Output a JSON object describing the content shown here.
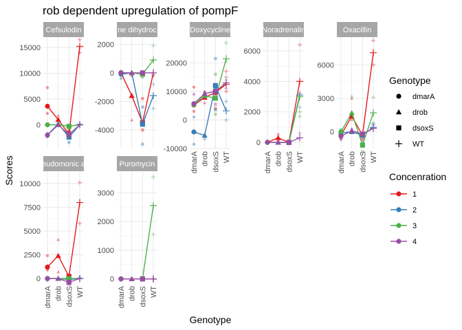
{
  "chart_data": {
    "type": "line",
    "title": "rob dependent upregulation of pompF",
    "xlabel": "Genotype",
    "ylabel": "Scores",
    "categories": [
      "dmarA",
      "drob",
      "dsoxS",
      "WT"
    ],
    "grid": true,
    "legend_position": "right",
    "legends": {
      "shape": {
        "title": "Genotype",
        "entries": [
          {
            "label": "dmarA",
            "shape": "circle"
          },
          {
            "label": "drob",
            "shape": "triangle"
          },
          {
            "label": "dsoxS",
            "shape": "square"
          },
          {
            "label": "WT",
            "shape": "plus"
          }
        ]
      },
      "color": {
        "title": "Concenration",
        "entries": [
          {
            "label": "1",
            "color": "#e41a1c"
          },
          {
            "label": "2",
            "color": "#377eb8"
          },
          {
            "label": "3",
            "color": "#4daf4a"
          },
          {
            "label": "4",
            "color": "#984ea3"
          }
        ]
      }
    },
    "panels": [
      {
        "strip": "Cefsulodin",
        "ylim": [
          -4600,
          17000
        ],
        "yticks": [
          0,
          5000,
          10000,
          15000
        ],
        "ytick_labels": [
          "0",
          "5000",
          "10000",
          "15000"
        ],
        "series": [
          {
            "name": "1",
            "values": [
              3600,
              1000,
              -1800,
              15200
            ],
            "points": [
              [
                0,
                7200
              ],
              [
                0,
                2200
              ],
              [
                1,
                1800
              ],
              [
                1,
                200
              ],
              [
                2,
                -1200
              ],
              [
                2,
                -2400
              ],
              [
                3,
                16500
              ],
              [
                3,
                14000
              ]
            ]
          },
          {
            "name": "2",
            "values": [
              -2000,
              200,
              -2400,
              0
            ],
            "points": [
              [
                0,
                -2300
              ],
              [
                0,
                -1700
              ],
              [
                1,
                300
              ],
              [
                2,
                -3400
              ],
              [
                2,
                -1400
              ],
              [
                3,
                200
              ]
            ]
          },
          {
            "name": "3",
            "values": [
              0,
              0,
              -300,
              0
            ],
            "points": [
              [
                0,
                100
              ],
              [
                1,
                -100
              ],
              [
                2,
                -800
              ],
              [
                2,
                -200
              ],
              [
                3,
                100
              ]
            ]
          },
          {
            "name": "4",
            "values": [
              -2000,
              0,
              -1900,
              0
            ],
            "points": [
              [
                0,
                -2300
              ],
              [
                0,
                -1800
              ],
              [
                1,
                100
              ],
              [
                2,
                -2200
              ],
              [
                2,
                -1600
              ],
              [
                3,
                -100
              ]
            ]
          }
        ]
      },
      {
        "strip": "ne dihydroc",
        "ylim": [
          -5300,
          2500
        ],
        "yticks": [
          -4000,
          -2000,
          0,
          2000
        ],
        "ytick_labels": [
          "-4000",
          "-2000",
          "0",
          "2000"
        ],
        "series": [
          {
            "name": "1",
            "values": [
              0,
              -1600,
              -3500,
              0
            ],
            "points": [
              [
                0,
                100
              ],
              [
                1,
                -3300
              ],
              [
                1,
                -200
              ],
              [
                2,
                -4000
              ],
              [
                2,
                -1800
              ],
              [
                3,
                -200
              ]
            ]
          },
          {
            "name": "2",
            "values": [
              -100,
              0,
              -3600,
              -1600
            ],
            "points": [
              [
                0,
                -400
              ],
              [
                1,
                100
              ],
              [
                2,
                -5000
              ],
              [
                2,
                -2400
              ],
              [
                3,
                -2500
              ],
              [
                3,
                -800
              ]
            ]
          },
          {
            "name": "3",
            "values": [
              0,
              0,
              -100,
              900
            ],
            "points": [
              [
                0,
                100
              ],
              [
                1,
                -100
              ],
              [
                2,
                -300
              ],
              [
                3,
                1900
              ],
              [
                3,
                -100
              ]
            ]
          },
          {
            "name": "4",
            "values": [
              0,
              0,
              0,
              0
            ],
            "points": [
              [
                0,
                -100
              ],
              [
                1,
                100
              ],
              [
                2,
                -100
              ],
              [
                3,
                0
              ]
            ]
          }
        ]
      },
      {
        "strip": "Doxycycline",
        "ylim": [
          -10000,
          29000
        ],
        "yticks": [
          -10000,
          0,
          10000,
          20000
        ],
        "ytick_labels": [
          "-10000",
          "0",
          "10000",
          "20000"
        ],
        "series": [
          {
            "name": "1",
            "values": [
              5200,
              7900,
              9600,
              12500
            ],
            "points": [
              [
                0,
                11500
              ],
              [
                0,
                3000
              ],
              [
                1,
                10000
              ],
              [
                1,
                6000
              ],
              [
                2,
                11000
              ],
              [
                2,
                4000
              ],
              [
                3,
                17000
              ],
              [
                3,
                10000
              ]
            ]
          },
          {
            "name": "2",
            "values": [
              -4200,
              -5400,
              12000,
              3200
            ],
            "points": [
              [
                0,
                -8500
              ],
              [
                0,
                1000
              ],
              [
                1,
                -6500
              ],
              [
                2,
                21500
              ],
              [
                2,
                3500
              ],
              [
                3,
                0
              ],
              [
                3,
                6500
              ]
            ]
          },
          {
            "name": "3",
            "values": [
              5300,
              8500,
              7600,
              21400
            ],
            "points": [
              [
                0,
                6000
              ],
              [
                1,
                9500
              ],
              [
                2,
                16000
              ],
              [
                2,
                2000
              ],
              [
                3,
                27000
              ],
              [
                3,
                14000
              ]
            ]
          },
          {
            "name": "4",
            "values": [
              5700,
              9200,
              10000,
              13000
            ],
            "points": [
              [
                0,
                9000
              ],
              [
                1,
                10000
              ],
              [
                2,
                12500
              ],
              [
                2,
                5500
              ],
              [
                3,
                15000
              ],
              [
                3,
                11000
              ]
            ]
          }
        ]
      },
      {
        "strip": "Noradrenalin",
        "ylim": [
          -400,
          6900
        ],
        "yticks": [
          0,
          2000,
          4000,
          6000
        ],
        "ytick_labels": [
          "0",
          "2000",
          "4000",
          "6000"
        ],
        "series": [
          {
            "name": "1",
            "values": [
              0,
              300,
              0,
              4000
            ],
            "points": [
              [
                0,
                100
              ],
              [
                1,
                550
              ],
              [
                1,
                150
              ],
              [
                2,
                100
              ],
              [
                3,
                6400
              ],
              [
                3,
                3200
              ]
            ]
          },
          {
            "name": "2",
            "values": [
              0,
              0,
              0,
              3100
            ],
            "points": [
              [
                0,
                -50
              ],
              [
                1,
                50
              ],
              [
                2,
                -50
              ],
              [
                3,
                2300
              ]
            ]
          },
          {
            "name": "3",
            "values": [
              0,
              0,
              0,
              3000
            ],
            "points": [
              [
                0,
                50
              ],
              [
                1,
                -50
              ],
              [
                2,
                50
              ],
              [
                3,
                2000
              ],
              [
                3,
                1700
              ]
            ]
          },
          {
            "name": "4",
            "values": [
              0,
              0,
              0,
              300
            ],
            "points": [
              [
                0,
                -50
              ],
              [
                1,
                50
              ],
              [
                2,
                -50
              ],
              [
                3,
                600
              ]
            ]
          }
        ]
      },
      {
        "strip": "Oxacillin",
        "ylim": [
          -1500,
          8500
        ],
        "yticks": [
          0,
          3000,
          6000
        ],
        "ytick_labels": [
          "0",
          "3000",
          "6000"
        ],
        "series": [
          {
            "name": "1",
            "values": [
              -300,
              1400,
              -300,
              7100
            ],
            "points": [
              [
                0,
                -600
              ],
              [
                1,
                3000
              ],
              [
                1,
                1100
              ],
              [
                2,
                -700
              ],
              [
                3,
                8200
              ],
              [
                3,
                6000
              ]
            ]
          },
          {
            "name": "2",
            "values": [
              -100,
              0,
              -300,
              400
            ],
            "points": [
              [
                0,
                -300
              ],
              [
                1,
                200
              ],
              [
                2,
                -1000
              ],
              [
                3,
                700
              ]
            ]
          },
          {
            "name": "3",
            "values": [
              0,
              1700,
              -1200,
              1700
            ],
            "points": [
              [
                0,
                200
              ],
              [
                1,
                3200
              ],
              [
                2,
                -1800
              ],
              [
                3,
                3100
              ],
              [
                3,
                800
              ]
            ]
          },
          {
            "name": "4",
            "values": [
              -400,
              100,
              -200,
              300
            ],
            "points": [
              [
                0,
                -700
              ],
              [
                1,
                300
              ],
              [
                2,
                -500
              ],
              [
                3,
                600
              ]
            ]
          }
        ]
      },
      {
        "strip": "eudomonic a",
        "ylim": [
          -500,
          11300
        ],
        "yticks": [
          0,
          2500,
          5000,
          7500,
          10000
        ],
        "ytick_labels": [
          "0",
          "2500",
          "5000",
          "7500",
          "10000"
        ],
        "series": [
          {
            "name": "1",
            "values": [
              1200,
              2400,
              200,
              8000
            ],
            "points": [
              [
                0,
                2400
              ],
              [
                0,
                900
              ],
              [
                1,
                4100
              ],
              [
                1,
                700
              ],
              [
                2,
                400
              ],
              [
                3,
                10100
              ],
              [
                3,
                5800
              ]
            ]
          },
          {
            "name": "2",
            "values": [
              0,
              0,
              -100,
              0
            ],
            "points": [
              [
                0,
                -100
              ],
              [
                1,
                100
              ],
              [
                2,
                -300
              ],
              [
                3,
                100
              ]
            ]
          },
          {
            "name": "3",
            "values": [
              0,
              0,
              0,
              0
            ],
            "points": [
              [
                0,
                100
              ],
              [
                1,
                -100
              ],
              [
                2,
                100
              ],
              [
                3,
                -50
              ]
            ]
          },
          {
            "name": "4",
            "values": [
              0,
              0,
              -400,
              0
            ],
            "points": [
              [
                0,
                -200
              ],
              [
                1,
                100
              ],
              [
                2,
                -600
              ],
              [
                3,
                50
              ]
            ]
          }
        ]
      },
      {
        "strip": "Puromycin",
        "ylim": [
          -150,
          3750
        ],
        "yticks": [
          0,
          1000,
          2000,
          3000
        ],
        "ytick_labels": [
          "0",
          "1000",
          "2000",
          "3000"
        ],
        "series": [
          {
            "name": "1",
            "values": [
              0,
              0,
              0,
              0
            ],
            "points": [
              [
                0,
                20
              ],
              [
                1,
                -20
              ],
              [
                2,
                20
              ],
              [
                3,
                -10
              ]
            ]
          },
          {
            "name": "2",
            "values": [
              0,
              0,
              0,
              0
            ],
            "points": [
              [
                0,
                -20
              ],
              [
                1,
                20
              ],
              [
                2,
                -20
              ],
              [
                3,
                10
              ]
            ]
          },
          {
            "name": "3",
            "values": [
              0,
              0,
              0,
              2550
            ],
            "points": [
              [
                0,
                10
              ],
              [
                1,
                10
              ],
              [
                2,
                -10
              ],
              [
                3,
                3550
              ],
              [
                3,
                1550
              ]
            ]
          },
          {
            "name": "4",
            "values": [
              0,
              0,
              0,
              0
            ],
            "points": [
              [
                0,
                0
              ],
              [
                1,
                0
              ],
              [
                2,
                0
              ],
              [
                3,
                0
              ]
            ]
          }
        ]
      }
    ]
  }
}
